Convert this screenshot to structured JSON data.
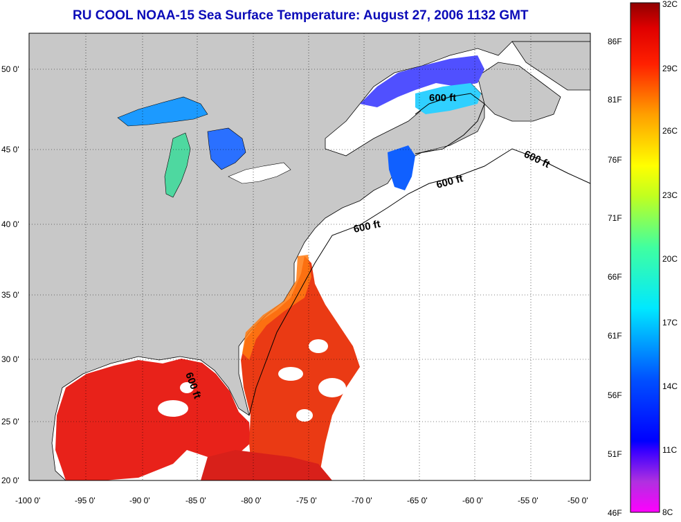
{
  "title": "RU COOL  NOAA-15  Sea Surface Temperature:  August 27, 2006 1132 GMT",
  "map": {
    "lon_ticks": [
      "-100 0'",
      "-95 0'",
      "-90 0'",
      "-85 0'",
      "-80 0'",
      "-75 0'",
      "-70 0'",
      "-65 0'",
      "-60 0'",
      "-55 0'",
      "-50 0'"
    ],
    "lat_ticks": [
      "50 0'",
      "45 0'",
      "40 0'",
      "35 0'",
      "30 0'",
      "25 0'",
      "20 0'"
    ],
    "contour_labels": [
      "600 ft",
      "600 ft",
      "600 ft",
      "600 ft",
      "600 ft"
    ],
    "land_color": "#c8c8c8",
    "ocean_nodata_color": "#ffffff"
  },
  "colorbar": {
    "f_labels": [
      "86F",
      "81F",
      "76F",
      "71F",
      "66F",
      "61F",
      "56F",
      "51F",
      "46F"
    ],
    "c_labels": [
      "32C",
      "29C",
      "26C",
      "23C",
      "20C",
      "17C",
      "14C",
      "11C",
      "8C"
    ]
  },
  "icons": [
    "contour-line",
    "coastline"
  ]
}
